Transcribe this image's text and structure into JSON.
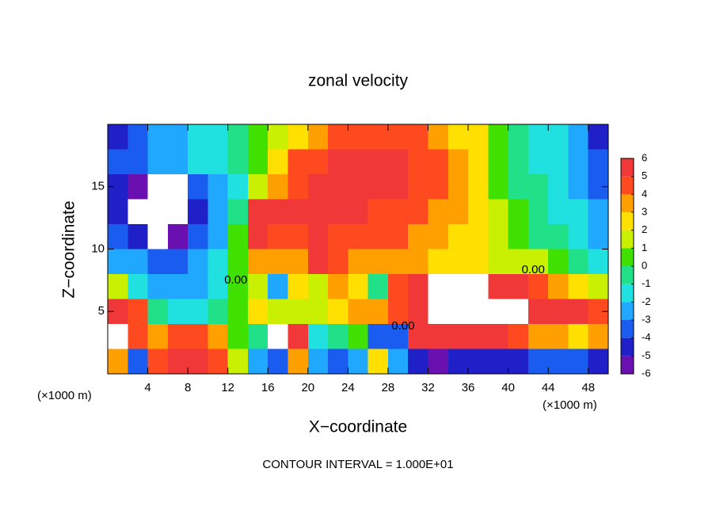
{
  "chart_data": {
    "type": "heatmap",
    "title": "zonal velocity",
    "x_label": "X−coordinate",
    "y_label": "Z−coordinate",
    "x_unit": "(×1000 m)",
    "x_unit_right": "(×1000 m)",
    "footnote": "CONTOUR INTERVAL = 1.000E+01",
    "xlim": [
      0,
      50
    ],
    "ylim": [
      0,
      20
    ],
    "xticks": [
      4,
      8,
      12,
      16,
      20,
      24,
      28,
      32,
      36,
      40,
      44,
      48
    ],
    "yticks": [
      5,
      10,
      15
    ],
    "x": [
      1,
      3,
      5,
      7,
      9,
      11,
      13,
      15,
      17,
      19,
      21,
      23,
      25,
      27,
      29,
      31,
      33,
      35,
      37,
      39,
      41,
      43,
      45,
      47,
      49
    ],
    "z": [
      19,
      17,
      15,
      13,
      11,
      9,
      7,
      5,
      3,
      1
    ],
    "values": [
      [
        -5,
        -4,
        -3,
        -3,
        -2,
        -2,
        -1,
        0,
        1,
        2,
        3,
        4,
        4,
        4,
        4,
        4,
        3,
        2,
        2,
        0,
        -1,
        -2,
        -2,
        -3,
        -5
      ],
      [
        -4,
        -4,
        -3,
        -3,
        -2,
        -2,
        -1,
        0,
        2,
        4,
        4,
        5,
        5,
        5,
        5,
        4,
        4,
        3,
        2,
        0,
        -1,
        -2,
        -2,
        -3,
        -4
      ],
      [
        -5,
        -6,
        -7,
        -7,
        -4,
        -3,
        -2,
        1,
        3,
        4,
        5,
        5,
        5,
        5,
        5,
        4,
        4,
        3,
        2,
        0,
        -1,
        -1,
        -2,
        -3,
        -4
      ],
      [
        -5,
        -7,
        -7,
        -7,
        -5,
        -3,
        -1,
        5,
        5,
        5,
        5,
        5,
        5,
        4,
        4,
        4,
        3,
        3,
        2,
        1,
        0,
        -1,
        -2,
        -2,
        -3
      ],
      [
        -4,
        -5,
        -7,
        -6,
        -4,
        -3,
        0,
        5,
        4,
        4,
        5,
        4,
        4,
        4,
        4,
        3,
        3,
        2,
        2,
        1,
        0,
        -1,
        -1,
        -2,
        -3
      ],
      [
        -3,
        -3,
        -4,
        -4,
        -3,
        -2,
        0,
        3,
        3,
        3,
        5,
        4,
        3,
        3,
        3,
        3,
        2,
        2,
        2,
        1,
        1,
        1,
        0,
        -1,
        -2
      ],
      [
        1,
        -2,
        -3,
        -3,
        -3,
        -2,
        0,
        1,
        -3,
        2,
        1,
        3,
        2,
        -1,
        4,
        6,
        7,
        7,
        7,
        6,
        5,
        4,
        3,
        2,
        1
      ],
      [
        5,
        4,
        -1,
        -2,
        -2,
        -1,
        0,
        2,
        1,
        1,
        1,
        2,
        3,
        3,
        4,
        5,
        7,
        7,
        7,
        7,
        7,
        6,
        5,
        5,
        4
      ],
      [
        7,
        4,
        3,
        4,
        4,
        3,
        0,
        -1,
        7,
        5,
        -2,
        -1,
        0,
        -4,
        -4,
        5,
        6,
        5,
        5,
        5,
        4,
        3,
        3,
        2,
        3
      ],
      [
        3,
        -4,
        4,
        5,
        5,
        4,
        1,
        -3,
        -4,
        3,
        -3,
        -4,
        -3,
        2,
        -3,
        -5,
        -6,
        -5,
        -5,
        -5,
        -5,
        -4,
        -4,
        -4,
        -5
      ]
    ],
    "colorbar": {
      "ticks": [
        -6,
        -5,
        -4,
        -3,
        -2,
        -1,
        0,
        1,
        2,
        3,
        4,
        5,
        6
      ],
      "colors": [
        "#6a10b0",
        "#2020c8",
        "#1a5cf0",
        "#20a8ff",
        "#20e0e0",
        "#20e088",
        "#40e000",
        "#c8f000",
        "#ffe000",
        "#ffa000",
        "#ff4a20",
        "#f03838"
      ]
    },
    "annotations": [
      {
        "text": "0.00",
        "x": 12.8,
        "z": 7.5
      },
      {
        "text": "0.00",
        "x": 29.5,
        "z": 3.8
      },
      {
        "text": "0.00",
        "x": 42.5,
        "z": 8.3
      }
    ]
  }
}
